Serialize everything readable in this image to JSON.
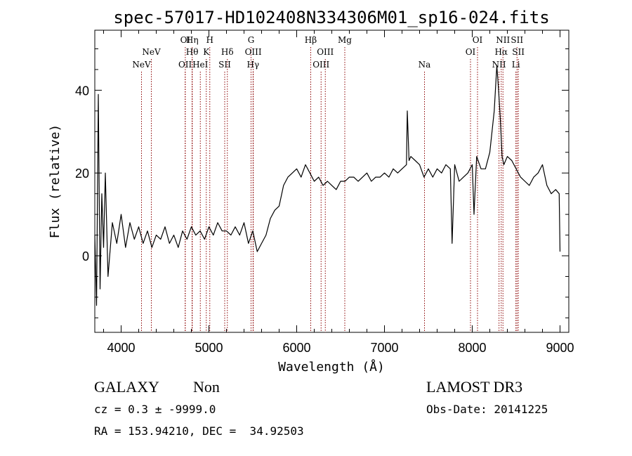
{
  "chart_data": {
    "type": "line",
    "title": "spec-57017-HD102408N334306M01_sp16-024.fits",
    "xlabel": "Wavelength (Å)",
    "ylabel": "Flux (relative)",
    "xlim": [
      3700,
      9100
    ],
    "ylim": [
      -18.5,
      54.5
    ],
    "xticks": [
      4000,
      5000,
      6000,
      7000,
      8000,
      9000
    ],
    "yticks": [
      0,
      20,
      40
    ],
    "grid": false,
    "legend": "none",
    "line_color": "#000000",
    "marker_color": "#8b0000",
    "series": [
      {
        "x": [
          3700,
          3720,
          3740,
          3760,
          3780,
          3800,
          3820,
          3850,
          3900,
          3950,
          4000,
          4050,
          4100,
          4150,
          4200,
          4250,
          4300,
          4350,
          4400,
          4450,
          4500,
          4550,
          4600,
          4650,
          4700,
          4750,
          4800,
          4850,
          4900,
          4950,
          5000,
          5050,
          5100,
          5150,
          5200,
          5250,
          5300,
          5350,
          5400,
          5450,
          5500,
          5550,
          5600,
          5650,
          5700,
          5750,
          5800,
          5850,
          5900,
          5950,
          6000,
          6050,
          6100,
          6150,
          6200,
          6250,
          6300,
          6350,
          6400,
          6450,
          6500,
          6550,
          6600,
          6650,
          6700,
          6750,
          6800,
          6850,
          6900,
          6950,
          7000,
          7050,
          7100,
          7150,
          7200,
          7250,
          7260,
          7280,
          7300,
          7350,
          7400,
          7450,
          7500,
          7550,
          7600,
          7650,
          7700,
          7750,
          7770,
          7800,
          7850,
          7900,
          7950,
          8000,
          8020,
          8050,
          8100,
          8150,
          8200,
          8250,
          8280,
          8300,
          8320,
          8340,
          8360,
          8400,
          8450,
          8500,
          8550,
          8600,
          8650,
          8700,
          8750,
          8800,
          8850,
          8900,
          8950,
          8990,
          9000
        ],
        "y": [
          5,
          -12,
          39,
          -8,
          15,
          2,
          20,
          -5,
          8,
          3,
          10,
          2,
          8,
          4,
          7,
          3,
          6,
          2,
          5,
          4,
          7,
          3,
          5,
          2,
          6,
          4,
          7,
          5,
          6,
          4,
          7,
          5,
          8,
          6,
          6,
          5,
          7,
          5,
          8,
          3,
          6,
          1,
          3,
          5,
          9,
          11,
          12,
          17,
          19,
          20,
          21,
          19,
          22,
          20,
          18,
          19,
          17,
          18,
          17,
          16,
          18,
          18,
          19,
          19,
          18,
          19,
          20,
          18,
          19,
          19,
          20,
          19,
          21,
          20,
          21,
          22,
          35,
          23,
          24,
          23,
          22,
          19,
          21,
          19,
          21,
          20,
          22,
          21,
          3,
          22,
          18,
          19,
          20,
          22,
          10,
          24,
          21,
          21,
          25,
          35,
          46,
          40,
          33,
          24,
          22,
          24,
          23,
          21,
          19,
          18,
          17,
          19,
          20,
          22,
          17,
          15,
          16,
          15,
          1
        ]
      }
    ],
    "line_markers": [
      {
        "label": "NeV",
        "x": 4232,
        "row": 3
      },
      {
        "label": "NeV",
        "x": 4344,
        "row": 2
      },
      {
        "label": "OII",
        "x": 4729,
        "row": 3
      },
      {
        "label": "OI",
        "x": 4731,
        "row": 1
      },
      {
        "label": "Hη",
        "x": 4810,
        "row": 1
      },
      {
        "label": "Hθ",
        "x": 4809,
        "row": 2
      },
      {
        "label": "HeI",
        "x": 4902,
        "row": 3
      },
      {
        "label": "H",
        "x": 5010,
        "row": 1
      },
      {
        "label": "K",
        "x": 4970,
        "row": 2
      },
      {
        "label": "SII",
        "x": 5180,
        "row": 3
      },
      {
        "label": "Hδ",
        "x": 5210,
        "row": 2
      },
      {
        "label": "G",
        "x": 5480,
        "row": 1
      },
      {
        "label": "OIII",
        "x": 5505,
        "row": 2
      },
      {
        "label": "Hγ",
        "x": 5503,
        "row": 3
      },
      {
        "label": "Hβ",
        "x": 6160,
        "row": 1
      },
      {
        "label": "OIII",
        "x": 6326,
        "row": 2
      },
      {
        "label": "OIII",
        "x": 6278,
        "row": 3
      },
      {
        "label": "Mg",
        "x": 6548,
        "row": 1
      },
      {
        "label": "Na",
        "x": 7456,
        "row": 3
      },
      {
        "label": "OI",
        "x": 8060,
        "row": 1
      },
      {
        "label": "OI",
        "x": 7980,
        "row": 2
      },
      {
        "label": "NII",
        "x": 8350,
        "row": 1
      },
      {
        "label": "Hα",
        "x": 8330,
        "row": 2
      },
      {
        "label": "NII",
        "x": 8305,
        "row": 3
      },
      {
        "label": "SII",
        "x": 8510,
        "row": 1
      },
      {
        "label": "SII",
        "x": 8525,
        "row": 2
      },
      {
        "label": "Li",
        "x": 8497,
        "row": 3
      }
    ]
  },
  "info": {
    "object_class": "GALAXY",
    "subclass": "Non",
    "survey": "LAMOST DR3",
    "cz": "cz = 0.3 ± -9999.0",
    "obs_date": "Obs-Date: 20141225",
    "coords": "RA = 153.94210, DEC =  34.92503"
  }
}
